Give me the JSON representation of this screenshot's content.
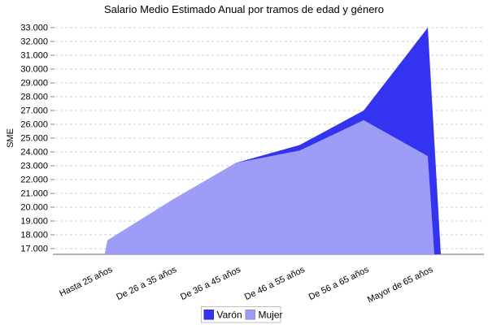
{
  "chart_data": {
    "type": "area",
    "title": "Salario Medio Estimado Anual por tramos de edad y género",
    "ylabel": "SME",
    "xlabel": "",
    "categories": [
      "Hasta 25 años",
      "De 26 a 35 años",
      "De 36 a 45 años",
      "De 46 a 55 años",
      "De 56 a 65 años",
      "Mayor de 65 años"
    ],
    "series": [
      {
        "name": "Varón",
        "values": [
          17500,
          20400,
          23200,
          24500,
          27000,
          33000
        ],
        "color": "#3333F0",
        "swatch_border": "#2929C8"
      },
      {
        "name": "Mujer",
        "values": [
          17600,
          20500,
          23200,
          24100,
          26300,
          23700
        ],
        "color": "#9D9DF7",
        "swatch_border": "#8C8CC8"
      }
    ],
    "ytick_values": [
      17000,
      18000,
      19000,
      20000,
      21000,
      22000,
      23000,
      24000,
      25000,
      26000,
      27000,
      28000,
      29000,
      30000,
      31000,
      32000,
      33000
    ],
    "ytick_labels": [
      "17.000",
      "18.000",
      "19.000",
      "20.000",
      "21.000",
      "22.000",
      "23.000",
      "24.000",
      "25.000",
      "26.000",
      "27.000",
      "28.000",
      "29.000",
      "30.000",
      "31.000",
      "32.000",
      "33.000"
    ],
    "ylim": [
      16600,
      33400
    ],
    "grid": "horizontal-dashed",
    "legend_position": "bottom-center",
    "colors": {
      "background": "#FFFFFF",
      "gridline": "#CCCCCC",
      "axis": "#848484",
      "text": "#000000",
      "legend_border": "#C0C0C0",
      "legend_background": "#FFFFFF"
    }
  }
}
